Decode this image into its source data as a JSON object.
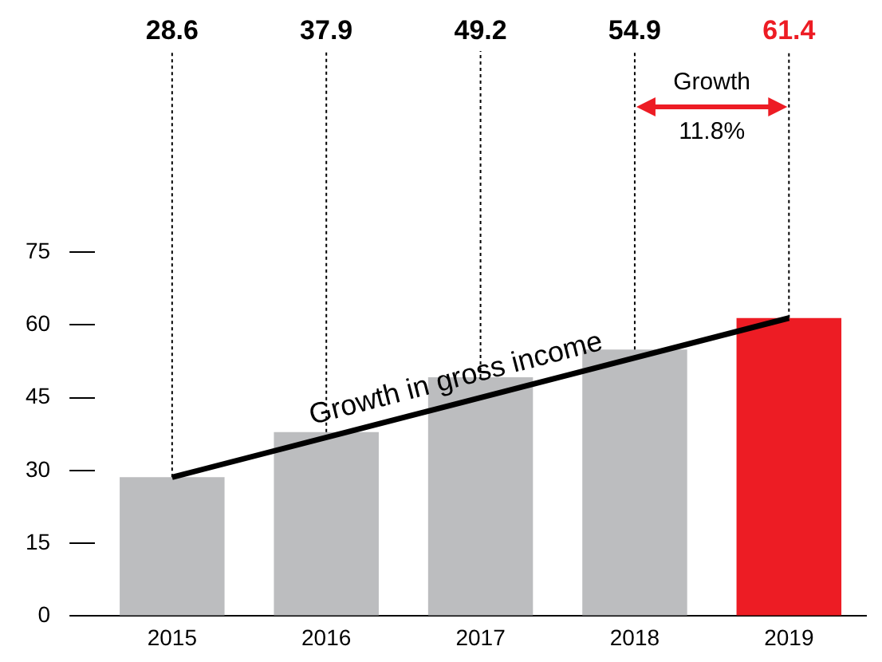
{
  "chart_data": {
    "type": "bar",
    "categories": [
      "2015",
      "2016",
      "2017",
      "2018",
      "2019"
    ],
    "series": [
      {
        "colors": [
          "#bcbdbf",
          "#bcbdbf",
          "#bcbdbf",
          "#bcbdbf",
          "#ed1c24"
        ],
        "values": [
          28.6,
          37.9,
          49.2,
          54.9,
          61.4
        ],
        "value_labels": [
          "28.6",
          "37.9",
          "49.2",
          "54.9",
          "61.4"
        ]
      },
      {
        "type": "line",
        "color": "#000000",
        "values": [
          28.6,
          null,
          null,
          null,
          61.4
        ]
      }
    ],
    "ylim": [
      0,
      75
    ],
    "yticks": [
      0,
      15,
      30,
      45,
      60,
      75
    ],
    "grid": "x",
    "legend": false,
    "marker": "none",
    "annotations": [
      "Growth in gross income",
      "Growth",
      "11.8%"
    ]
  }
}
